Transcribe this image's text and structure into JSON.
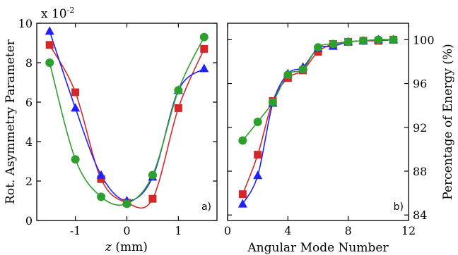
{
  "chart_data": [
    {
      "type": "line",
      "panel_label": "a)",
      "xlabel_italic": "z",
      "xlabel_rest": " (mm)",
      "ylabel": "Rot. Asymmetry Parameter",
      "y_multiplier": "x 10",
      "y_multiplier_exp": "-2",
      "xlim": [
        -1.75,
        1.75
      ],
      "ylim": [
        0,
        10
      ],
      "x_ticks": [
        -1,
        0,
        1
      ],
      "y_ticks": [
        0,
        2,
        4,
        6,
        8,
        10
      ],
      "series": [
        {
          "marker": "square",
          "color": "#d62728",
          "x": [
            -1.5,
            -1.0,
            -0.5,
            0.0,
            0.5,
            1.0,
            1.5
          ],
          "y": [
            8.9,
            6.5,
            2.1,
            0.9,
            1.1,
            5.7,
            8.7
          ]
        },
        {
          "marker": "triangle",
          "color": "#1f1fff",
          "x": [
            -1.5,
            -1.0,
            -0.5,
            0.0,
            0.5,
            1.0,
            1.5
          ],
          "y": [
            9.6,
            5.7,
            2.3,
            1.0,
            2.2,
            6.6,
            7.7
          ]
        },
        {
          "marker": "circle",
          "color": "#2ca02c",
          "x": [
            -1.5,
            -1.0,
            -0.5,
            0.0,
            0.5,
            1.0,
            1.5
          ],
          "y": [
            8.0,
            3.1,
            1.2,
            0.85,
            2.3,
            6.6,
            9.3
          ]
        }
      ]
    },
    {
      "type": "line",
      "panel_label": "b)",
      "xlabel": "Angular Mode Number",
      "ylabel": "Percentage of Energy (%)",
      "xlim": [
        0,
        12
      ],
      "ylim": [
        83.5,
        101.5
      ],
      "x_ticks": [
        0,
        4,
        8,
        12
      ],
      "y_ticks": [
        84,
        88,
        92,
        96,
        100
      ],
      "series": [
        {
          "marker": "square",
          "color": "#d62728",
          "x": [
            1,
            2,
            3,
            4,
            5,
            6,
            7,
            8,
            9,
            10,
            11
          ],
          "y": [
            85.9,
            89.5,
            94.4,
            96.5,
            97.2,
            98.9,
            99.6,
            99.8,
            99.9,
            99.9,
            100.0
          ]
        },
        {
          "marker": "triangle",
          "color": "#1f1fff",
          "x": [
            1,
            2,
            3,
            4,
            5,
            6,
            7,
            8,
            9,
            10,
            11
          ],
          "y": [
            85.0,
            87.6,
            94.2,
            96.9,
            97.5,
            99.2,
            99.4,
            99.8,
            99.9,
            100.0,
            100.0
          ]
        },
        {
          "marker": "circle",
          "color": "#2ca02c",
          "x": [
            1,
            2,
            3,
            4,
            5,
            6,
            7,
            8,
            9,
            10,
            11
          ],
          "y": [
            90.8,
            92.5,
            94.3,
            96.8,
            97.3,
            99.3,
            99.6,
            99.8,
            99.9,
            100.0,
            100.0
          ]
        }
      ]
    }
  ]
}
